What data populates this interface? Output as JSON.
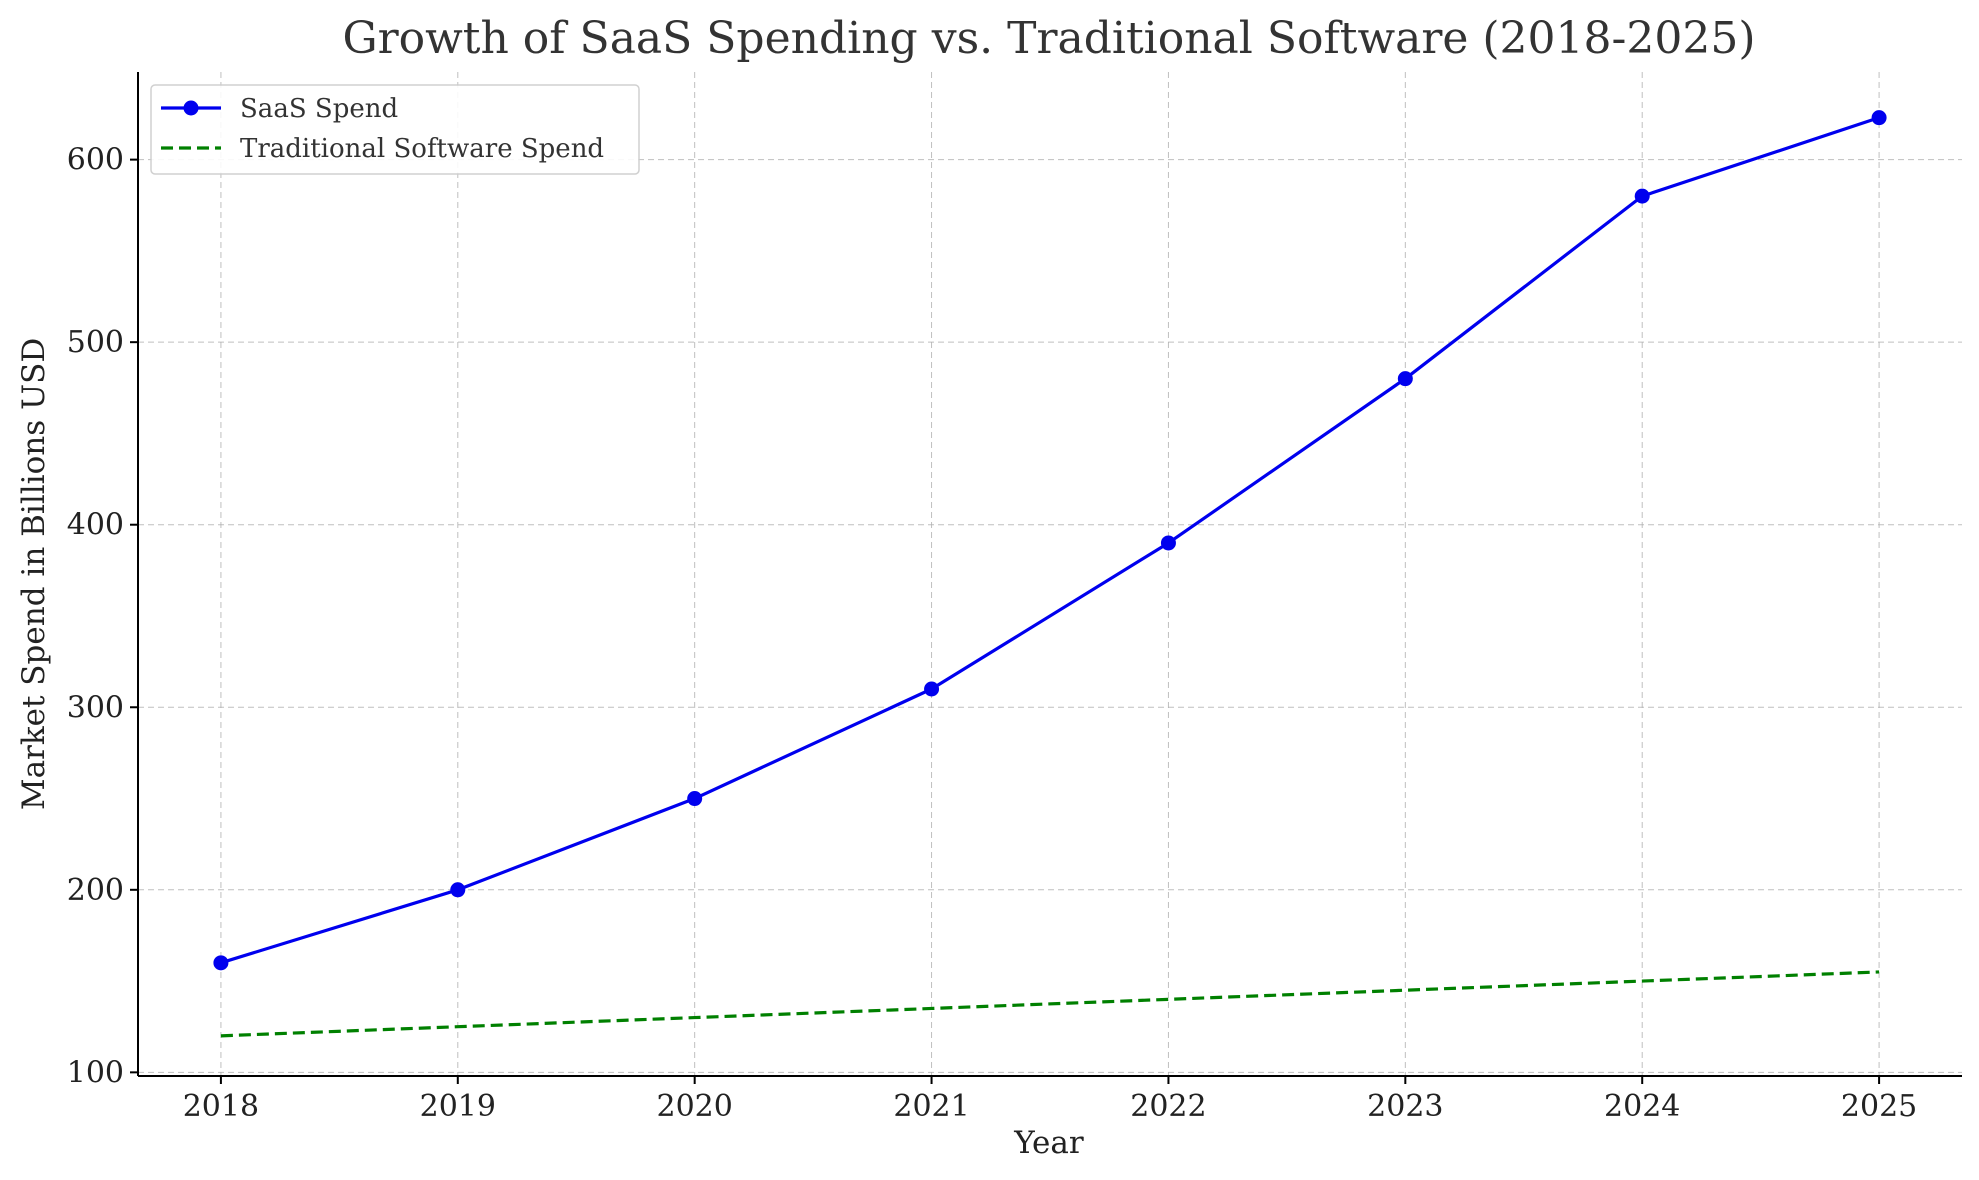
{
  "chart_data": {
    "type": "line",
    "title": "Growth of SaaS Spending vs. Traditional Software (2018-2025)",
    "xlabel": "Year",
    "ylabel": "Market Spend in Billions USD",
    "x": [
      2018,
      2019,
      2020,
      2021,
      2022,
      2023,
      2024,
      2025
    ],
    "xticks": [
      "2018",
      "2019",
      "2020",
      "2021",
      "2022",
      "2023",
      "2024",
      "2025"
    ],
    "yticks": [
      "100",
      "200",
      "300",
      "400",
      "500",
      "600"
    ],
    "xlim": [
      2017.65,
      2025.35
    ],
    "ylim": [
      98,
      648
    ],
    "grid": true,
    "legend_position": "top-left",
    "series": [
      {
        "name": "SaaS Spend",
        "values": [
          160,
          200,
          250,
          310,
          390,
          480,
          580,
          623
        ],
        "color": "#0000ee",
        "style": "solid",
        "marker": "circle"
      },
      {
        "name": "Traditional Software Spend",
        "values": [
          120,
          125,
          130,
          135,
          140,
          145,
          150,
          155
        ],
        "color": "#008000",
        "style": "dashed",
        "marker": "none"
      }
    ]
  }
}
